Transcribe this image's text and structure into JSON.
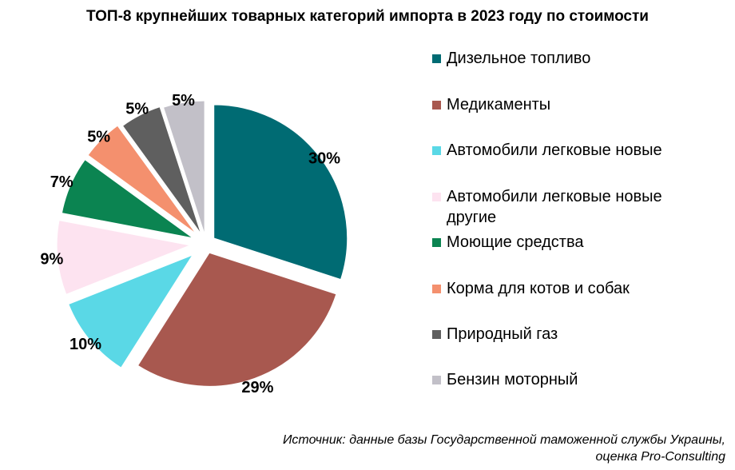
{
  "title": "ТОП-8 крупнейших товарных категорий импорта в 2023 году по стоимости",
  "source": {
    "line1": "Источник: данные базы Государственной таможенной службы Украины,",
    "line2": "оценка Pro-Consulting"
  },
  "chart_data": {
    "type": "pie",
    "title": "ТОП-8 крупнейших товарных категорий импорта в 2023 году по стоимости",
    "unit": "%",
    "legend_position": "right",
    "exploded": true,
    "slices": [
      {
        "label": "Дизельное топливо",
        "value": 30,
        "value_label": "30%",
        "color": "#006b73"
      },
      {
        "label": "Медикаменты",
        "value": 29,
        "value_label": "29%",
        "color": "#a8584f"
      },
      {
        "label": "Автомобили легковые новые",
        "value": 10,
        "value_label": "10%",
        "color": "#5ad8e6"
      },
      {
        "label": "Автомобили легковые новые другие",
        "value": 9,
        "value_label": "9%",
        "color": "#fde3f0"
      },
      {
        "label": "Моющие средства",
        "value": 7,
        "value_label": "7%",
        "color": "#0b8451"
      },
      {
        "label": "Корма для котов и собак",
        "value": 5,
        "value_label": "5%",
        "color": "#f4906e"
      },
      {
        "label": "Природный газ",
        "value": 5,
        "value_label": "5%",
        "color": "#5f5f5f"
      },
      {
        "label": "Бензин моторный",
        "value": 5,
        "value_label": "5%",
        "color": "#c2c0c8"
      }
    ]
  }
}
